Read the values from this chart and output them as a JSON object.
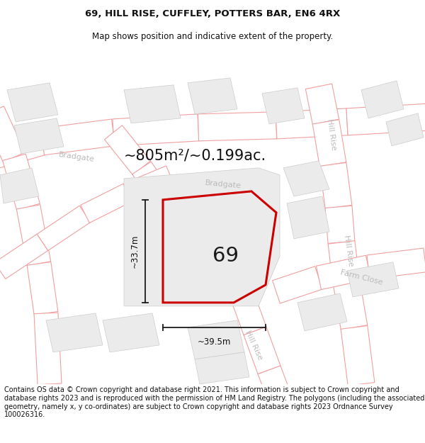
{
  "title_line1": "69, HILL RISE, CUFFLEY, POTTERS BAR, EN6 4RX",
  "title_line2": "Map shows position and indicative extent of the property.",
  "area_text": "~805m²/~0.199ac.",
  "label_69": "69",
  "dim_height": "~33.7m",
  "dim_width": "~39.5m",
  "footer_text": "Contains OS data © Crown copyright and database right 2021. This information is subject to Crown copyright and database rights 2023 and is reproduced with the permission of HM Land Registry. The polygons (including the associated geometry, namely x, y co-ordinates) are subject to Crown copyright and database rights 2023 Ordnance Survey 100026316.",
  "map_bg": "#ffffff",
  "road_fill": "#ffffff",
  "road_edge": "#f0a0a0",
  "building_fill": "#ebebeb",
  "building_edge": "#cccccc",
  "property_edge": "#cc0000",
  "property_fill": "#ebebeb",
  "dim_color": "#1a1a1a",
  "street_color": "#bbbbbb",
  "title_color": "#111111",
  "footer_color": "#111111"
}
